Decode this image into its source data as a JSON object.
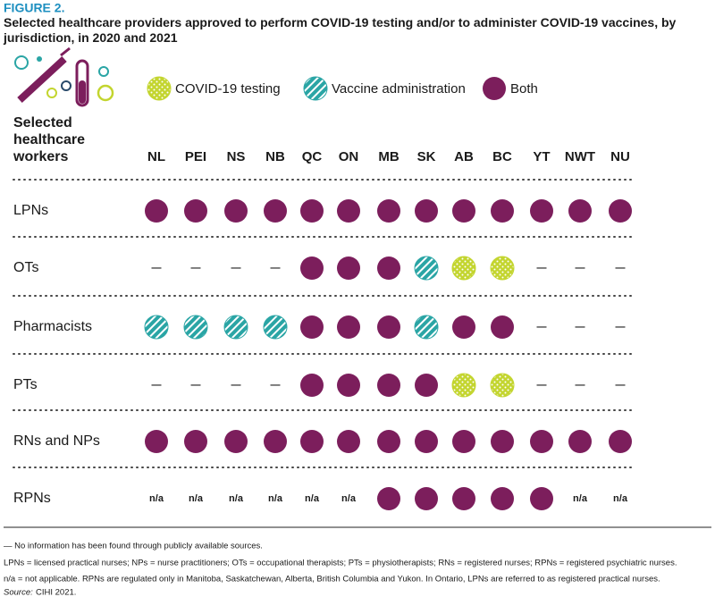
{
  "figure_label": "FIGURE 2.",
  "title": "Selected healthcare providers approved to perform COVID-19 testing and/or to administer COVID-19 vaccines, by jurisdiction, in 2020 and 2021",
  "legend": [
    {
      "label": "COVID-19 testing",
      "color": "#c3d52f",
      "pattern": "dots"
    },
    {
      "label": "Vaccine administration",
      "color": "#2aa5a5",
      "pattern": "stripes"
    },
    {
      "label": "Both",
      "color": "#7c1e5c",
      "pattern": "solid"
    }
  ],
  "table": {
    "row_header": [
      "Selected",
      "healthcare",
      "workers"
    ],
    "columns": [
      "NL",
      "PEI",
      "NS",
      "NB",
      "QC",
      "ON",
      "MB",
      "SK",
      "AB",
      "BC",
      "YT",
      "NWT",
      "NU"
    ],
    "rows": [
      {
        "label": "LPNs",
        "cells": [
          "Both",
          "Both",
          "Both",
          "Both",
          "Both",
          "Both",
          "Both",
          "Both",
          "Both",
          "Both",
          "Both",
          "Both",
          "Both"
        ]
      },
      {
        "label": "OTs",
        "cells": [
          "—",
          "—",
          "—",
          "—",
          "Both",
          "Both",
          "Both",
          "Vaccine administration",
          "COVID-19 testing",
          "COVID-19 testing",
          "—",
          "—",
          "—"
        ]
      },
      {
        "label": "Pharmacists",
        "cells": [
          "Vaccine administration",
          "Vaccine administration",
          "Vaccine administration",
          "Vaccine administration",
          "Both",
          "Both",
          "Both",
          "Vaccine administration",
          "Both",
          "Both",
          "—",
          "—",
          "—"
        ]
      },
      {
        "label": "PTs",
        "cells": [
          "—",
          "—",
          "—",
          "—",
          "Both",
          "Both",
          "Both",
          "Both",
          "COVID-19 testing",
          "COVID-19 testing",
          "—",
          "—",
          "—"
        ]
      },
      {
        "label": "RNs and NPs",
        "cells": [
          "Both",
          "Both",
          "Both",
          "Both",
          "Both",
          "Both",
          "Both",
          "Both",
          "Both",
          "Both",
          "Both",
          "Both",
          "Both"
        ]
      },
      {
        "label": "RPNs",
        "cells": [
          "n/a",
          "n/a",
          "n/a",
          "n/a",
          "n/a",
          "n/a",
          "Both",
          "Both",
          "Both",
          "Both",
          "Both",
          "n/a",
          "n/a"
        ]
      }
    ]
  },
  "notes": [
    "— No information has been found through publicly available sources.",
    "LPNs = licensed practical nurses; NPs = nurse practitioners; OTs = occupational therapists; PTs = physiotherapists; RNs = registered nurses; RPNs = registered psychiatric nurses.",
    "n/a = not applicable. RPNs are regulated only in Manitoba, Saskatchewan, Alberta, British Columbia and Yukon. In Ontario, LPNs are referred to as registered practical nurses."
  ],
  "source_label": "Source:",
  "source": "CIHI 2021."
}
